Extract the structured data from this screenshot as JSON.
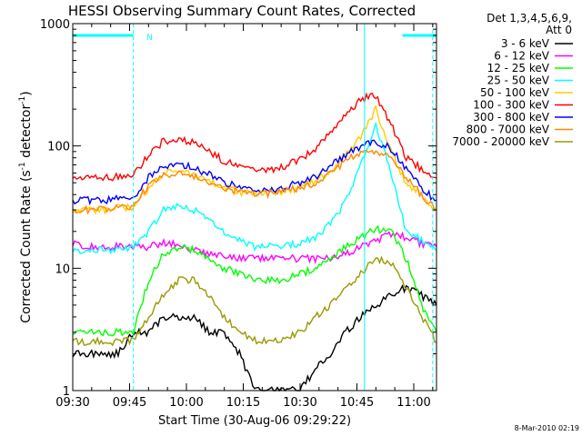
{
  "chart_data": {
    "type": "line",
    "title": "HESSI Observing Summary Count Rates, Corrected",
    "xlabel": "Start Time (30-Aug-06 09:29:22)",
    "ylabel_main": "Corrected Count Rate (s",
    "ylabel_sup1": "-1",
    "ylabel_mid": " detector",
    "ylabel_sup2": "-1",
    "ylabel_end": ")",
    "y_scale": "log",
    "ylim": [
      1,
      1000
    ],
    "xlim": [
      "09:30",
      "11:06"
    ],
    "x_ticks": [
      "09:30",
      "09:45",
      "10:00",
      "10:15",
      "10:30",
      "10:45",
      "11:00"
    ],
    "y_ticks": [
      "1",
      "10",
      "100",
      "1000"
    ],
    "legend_header": [
      "Det 1,3,4,5,6,9,",
      "Att 0"
    ],
    "legend_position": "right",
    "timestamp": "8-Mar-2010 02:19",
    "night_marker": "N",
    "annotations": {
      "night_intervals": [
        [
          "09:30",
          "09:46"
        ],
        [
          "10:57",
          "11:06"
        ]
      ],
      "vertical_lines": [
        "09:30",
        "09:46",
        "10:47",
        "11:05"
      ]
    },
    "series": [
      {
        "name": "3 - 6 keV",
        "color": "#000000",
        "values": [
          2,
          2,
          2,
          2,
          3,
          3,
          4,
          4,
          4,
          3,
          3,
          2,
          1,
          1,
          1,
          1,
          1.5,
          2,
          3,
          4,
          5,
          6,
          7,
          6,
          5
        ]
      },
      {
        "name": "6 - 12 keV",
        "color": "#ff00ff",
        "values": [
          16,
          15,
          15,
          15,
          15,
          15,
          16,
          16,
          14,
          13,
          13,
          12,
          12,
          12,
          12,
          12,
          12,
          12,
          13,
          15,
          17,
          19,
          18,
          16,
          15
        ]
      },
      {
        "name": "12 - 25 keV",
        "color": "#00ff00",
        "values": [
          3,
          3,
          3,
          3,
          3,
          8,
          13,
          15,
          14,
          12,
          10,
          9,
          8,
          8,
          8,
          9,
          10,
          12,
          15,
          18,
          21,
          20,
          12,
          5,
          3
        ]
      },
      {
        "name": "25 - 50 keV",
        "color": "#00ffff",
        "values": [
          14,
          14,
          14,
          14,
          15,
          20,
          30,
          33,
          30,
          25,
          20,
          17,
          15,
          15,
          15,
          16,
          18,
          23,
          35,
          70,
          150,
          60,
          20,
          17,
          14
        ]
      },
      {
        "name": "50 - 100 keV",
        "color": "#ffcc00",
        "values": [
          30,
          30,
          30,
          31,
          32,
          45,
          60,
          62,
          58,
          52,
          46,
          42,
          40,
          41,
          43,
          46,
          52,
          63,
          85,
          120,
          200,
          90,
          50,
          40,
          30
        ]
      },
      {
        "name": "100 - 300 keV",
        "color": "#ff0000",
        "values": [
          55,
          55,
          55,
          56,
          58,
          85,
          110,
          115,
          105,
          90,
          75,
          68,
          63,
          64,
          68,
          78,
          95,
          130,
          180,
          240,
          260,
          150,
          80,
          65,
          55
        ]
      },
      {
        "name": "300 - 800 keV",
        "color": "#0000ff",
        "values": [
          36,
          36,
          36,
          37,
          38,
          55,
          68,
          70,
          66,
          58,
          50,
          46,
          44,
          44,
          46,
          50,
          56,
          68,
          85,
          100,
          110,
          95,
          65,
          45,
          36
        ]
      },
      {
        "name": "800 - 7000 keV",
        "color": "#ff8800",
        "values": [
          30,
          30,
          30,
          31,
          32,
          48,
          58,
          60,
          57,
          51,
          45,
          42,
          41,
          41,
          42,
          45,
          50,
          60,
          75,
          88,
          92,
          80,
          55,
          40,
          30
        ]
      },
      {
        "name": "7000 - 20000 keV",
        "color": "#999900",
        "values": [
          2.5,
          2.5,
          2.5,
          2.5,
          2.6,
          4,
          6,
          8,
          8,
          6,
          4,
          3,
          2.6,
          2.5,
          2.6,
          3,
          4,
          5,
          7,
          9,
          12,
          11,
          7,
          4,
          2.5
        ]
      }
    ],
    "x": [
      "09:30",
      "09:34",
      "09:38",
      "09:42",
      "09:46",
      "09:50",
      "09:54",
      "09:58",
      "10:02",
      "10:06",
      "10:10",
      "10:14",
      "10:18",
      "10:22",
      "10:26",
      "10:30",
      "10:34",
      "10:38",
      "10:42",
      "10:46",
      "10:50",
      "10:54",
      "10:58",
      "11:02",
      "11:06"
    ]
  }
}
